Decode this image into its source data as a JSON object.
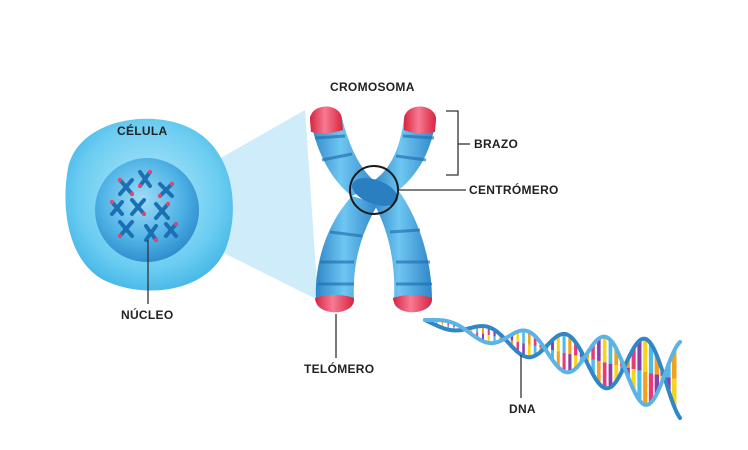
{
  "labels": {
    "cell": "CÉLULA",
    "chromosome": "CROMOSOMA",
    "arm": "BRAZO",
    "centromere": "CENTRÓMERO",
    "nucleus": "NÚCLEO",
    "telomere": "TELÓMERO",
    "dna": "DNA"
  },
  "colors": {
    "cell_outer": "#5cc6ef",
    "cell_outer_light": "#a9e4f9",
    "cell_inner": "#2e96d6",
    "cell_inner_light": "#7fd0f5",
    "chromosome": "#3b9ad8",
    "chromosome_light": "#6ec6f2",
    "chromosome_dark": "#1f6fae",
    "telomere": "#e8324f",
    "telomere_light": "#f78aa0",
    "zoom_cone": "#bfe6f7",
    "dna_backbone": "#2f86c8",
    "line": "#333333",
    "base_colors": [
      "#f3a21b",
      "#e63b7a",
      "#8b3fa8",
      "#f7d51d",
      "#4fb9e8"
    ]
  }
}
